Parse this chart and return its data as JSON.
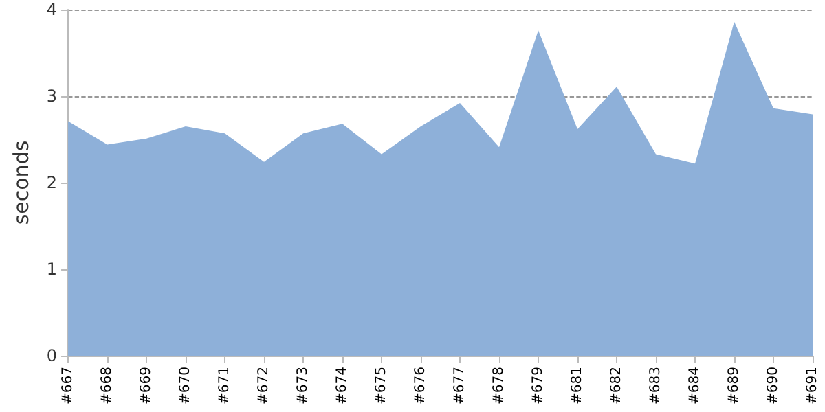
{
  "chart_data": {
    "type": "area",
    "ylabel": "seconds",
    "categories": [
      "#667",
      "#668",
      "#669",
      "#670",
      "#671",
      "#672",
      "#673",
      "#674",
      "#675",
      "#676",
      "#677",
      "#678",
      "#679",
      "#681",
      "#682",
      "#683",
      "#684",
      "#689",
      "#690",
      "#691"
    ],
    "series": [
      {
        "color": "#8eb0d9",
        "values": [
          2.71,
          2.44,
          2.51,
          2.65,
          2.57,
          2.24,
          2.57,
          2.68,
          2.33,
          2.65,
          2.92,
          2.41,
          3.76,
          2.62,
          3.11,
          2.33,
          2.22,
          3.86,
          2.86,
          2.79
        ]
      }
    ],
    "ylim": [
      0,
      4
    ],
    "yticks": [
      0,
      1,
      2,
      3,
      4
    ],
    "grid": "y"
  }
}
